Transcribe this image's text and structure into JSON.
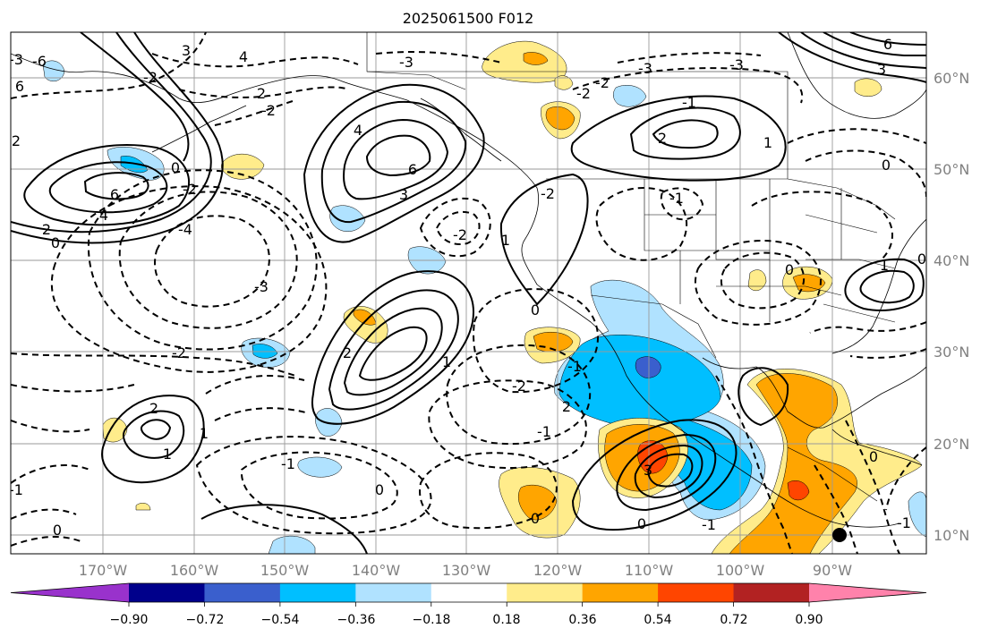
{
  "title": "2025061500 F012",
  "lon_ticks": [
    "170°W",
    "160°W",
    "150°W",
    "140°W",
    "130°W",
    "120°W",
    "110°W",
    "100°W",
    "90°W"
  ],
  "lat_ticks": [
    "60°N",
    "50°N",
    "40°N",
    "30°N",
    "20°N",
    "10°N"
  ],
  "colorbar": {
    "ticks": [
      "−0.90",
      "−0.72",
      "−0.54",
      "−0.36",
      "−0.18",
      "0.18",
      "0.36",
      "0.54",
      "0.72",
      "0.90"
    ],
    "colors": [
      "#9932cc",
      "#00008b",
      "#3a5fcd",
      "#00bfff",
      "#b0e2ff",
      "#ffffff",
      "#ffec8b",
      "#ffa500",
      "#ff4500",
      "#b22222",
      "#ff82ab"
    ],
    "extend": "both"
  },
  "fill_colors": {
    "lt_yellow": "#ffec8b",
    "orange": "#ffa500",
    "red_orange": "#ff4500",
    "lt_blue": "#b0e2ff",
    "blue": "#00bfff",
    "dk_blue": "#3a5fcd"
  },
  "contour_labels": [
    "3",
    "4",
    "6",
    "-6",
    "-3",
    "-2",
    "0",
    "2",
    "4",
    "6",
    "2",
    "0",
    "-2",
    "2",
    "-2",
    "4",
    "6",
    "-4",
    "-3",
    "-2",
    "-2",
    "1",
    "1",
    "2",
    "-1",
    "-3",
    "3",
    "-3",
    "-2",
    "2",
    "6",
    "-3",
    "3",
    "-1",
    "0",
    "-2",
    "-2",
    "-1",
    "0",
    "-1",
    "-2",
    "2",
    "1",
    "1",
    "0",
    "2",
    "-1",
    "0",
    "3",
    "0",
    "-1",
    "0",
    "-1",
    "1",
    "0",
    "0",
    "-1",
    "1",
    "0"
  ]
}
